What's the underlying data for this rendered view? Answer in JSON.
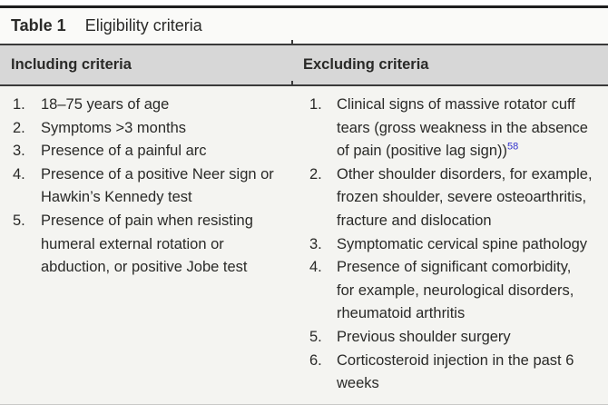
{
  "title": {
    "label": "Table 1",
    "text": "Eligibility criteria"
  },
  "columns": [
    {
      "header": "Including criteria",
      "items": [
        {
          "number": "1.",
          "lines": [
            "18–75 years of age"
          ]
        },
        {
          "number": "2.",
          "lines": [
            "Symptoms >3 months"
          ]
        },
        {
          "number": "3.",
          "lines": [
            "Presence of a painful arc"
          ]
        },
        {
          "number": "4.",
          "lines": [
            "Presence of a positive Neer sign or",
            "Hawkin’s Kennedy test"
          ]
        },
        {
          "number": "5.",
          "lines": [
            "Presence of pain when resisting",
            "humeral external rotation or",
            "abduction, or positive Jobe test"
          ]
        }
      ]
    },
    {
      "header": "Excluding criteria",
      "items": [
        {
          "number": "1.",
          "lines": [
            "Clinical signs of massive rotator cuff",
            "tears (gross weakness in the absence",
            "of pain (positive lag sign))"
          ],
          "ref": "58"
        },
        {
          "number": "2.",
          "lines": [
            "Other shoulder disorders, for example,",
            "frozen shoulder, severe osteoarthritis,",
            "fracture and dislocation"
          ]
        },
        {
          "number": "3.",
          "lines": [
            "Symptomatic cervical spine pathology"
          ]
        },
        {
          "number": "4.",
          "lines": [
            "Presence of significant comorbidity,",
            "for example, neurological disorders,",
            "rheumatoid arthritis"
          ]
        },
        {
          "number": "5.",
          "lines": [
            "Previous shoulder surgery"
          ]
        },
        {
          "number": "6.",
          "lines": [
            "Corticosteroid injection in the past 6",
            "weeks"
          ]
        }
      ]
    }
  ],
  "colors": {
    "top_rule": "#1e1e1e",
    "header_rule": "#3a3a3a",
    "header_bg": "#d7d7d7",
    "title_bg": "#fafaf8",
    "body_bg": "#f4f4f1",
    "bottom_rule": "#c9c9c7",
    "text": "#2a2a28",
    "ref_link": "#3333cc"
  }
}
